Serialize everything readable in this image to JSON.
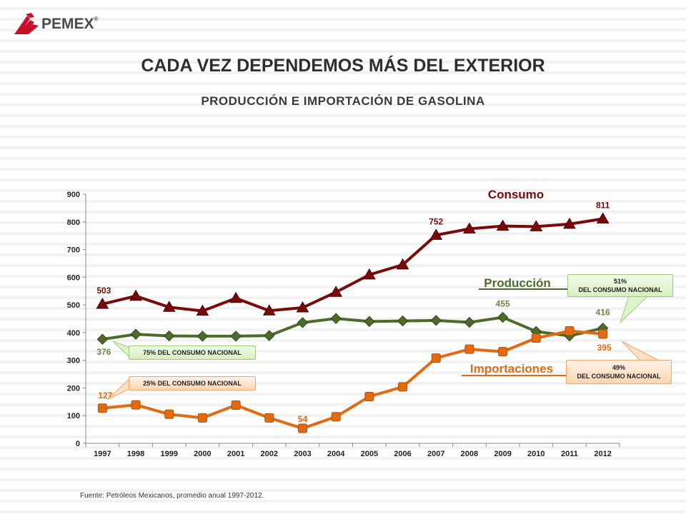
{
  "logo": {
    "text": "PEMEX",
    "reg": "®"
  },
  "title": "CADA VEZ DEPENDEMOS MÁS DEL EXTERIOR",
  "subtitle": "PRODUCCIÓN  E IMPORTACIÓN DE GASOLINA",
  "footer": "Fuente: Petróleos Mexicanos, promedio anual 1997-2012.",
  "colors": {
    "consumo": "#7a0a0a",
    "produccion": "#4d6b2a",
    "importaciones": "#e26b12"
  },
  "chart_data": {
    "type": "line",
    "title": "PRODUCCIÓN  E IMPORTACIÓN DE GASOLINA",
    "xlabel": "",
    "ylabel": "",
    "ylim": [
      0,
      900
    ],
    "yticks": [
      0,
      100,
      200,
      300,
      400,
      500,
      600,
      700,
      800,
      900
    ],
    "categories": [
      "1997",
      "1998",
      "1999",
      "2000",
      "2001",
      "2002",
      "2003",
      "2004",
      "2005",
      "2006",
      "2007",
      "2008",
      "2009",
      "2010",
      "2011",
      "2012"
    ],
    "series": [
      {
        "name": "Consumo",
        "key": "consumo",
        "marker": "triangle",
        "values": [
          503,
          532,
          492,
          478,
          524,
          479,
          490,
          546,
          609,
          645,
          752,
          775,
          785,
          783,
          792,
          811
        ]
      },
      {
        "name": "Producción",
        "key": "produccion",
        "marker": "diamond",
        "values": [
          376,
          394,
          388,
          387,
          387,
          389,
          436,
          451,
          440,
          442,
          444,
          437,
          455,
          404,
          388,
          416
        ]
      },
      {
        "name": "Importaciones",
        "key": "importaciones",
        "marker": "square",
        "values": [
          127,
          139,
          105,
          92,
          138,
          92,
          54,
          96,
          169,
          204,
          308,
          340,
          331,
          380,
          406,
          395
        ]
      }
    ],
    "data_labels": [
      {
        "series": "consumo",
        "index": 0,
        "text": "503"
      },
      {
        "series": "consumo",
        "index": 10,
        "text": "752"
      },
      {
        "series": "consumo",
        "index": 15,
        "text": "811"
      },
      {
        "series": "produccion",
        "index": 0,
        "text": "376"
      },
      {
        "series": "produccion",
        "index": 12,
        "text": "455"
      },
      {
        "series": "produccion",
        "index": 15,
        "text": "416"
      },
      {
        "series": "importaciones",
        "index": 0,
        "text": "127"
      },
      {
        "series": "importaciones",
        "index": 6,
        "text": "54"
      },
      {
        "series": "importaciones",
        "index": 15,
        "text": "395"
      }
    ],
    "callouts": {
      "prod_1997": "75% DEL CONSUMO NACIONAL",
      "imp_1997": "25% DEL CONSUMO NACIONAL",
      "prod_2012_pct": "51%",
      "prod_2012_text": "DEL CONSUMO NACIONAL",
      "imp_2012_pct": "49%",
      "imp_2012_text": "DEL CONSUMO NACIONAL"
    }
  }
}
